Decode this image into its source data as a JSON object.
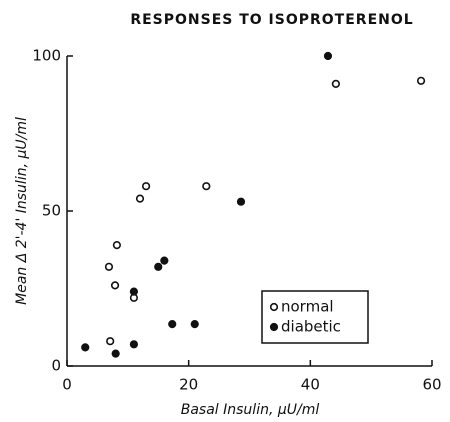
{
  "chart_data": {
    "type": "scatter",
    "title": "RESPONSES TO ISOPROTERENOL",
    "xlabel": "Basal Insulin, μU/ml",
    "ylabel": "Mean Δ 2'-4' Insulin, μU/ml",
    "xlim": [
      0,
      60
    ],
    "xticks": [
      0,
      20,
      40,
      60
    ],
    "ylim": [
      0,
      100
    ],
    "yticks": [
      0,
      50,
      100
    ],
    "legend": "lower right",
    "series": [
      {
        "name": "normal",
        "color": "#111111",
        "marker": "open",
        "x": [
          7.1,
          7.9,
          6.9,
          8.2,
          11,
          12,
          13,
          22.9,
          44.2,
          58.2
        ],
        "values": [
          8,
          26,
          32,
          39,
          22,
          54,
          58,
          58,
          91,
          92
        ]
      },
      {
        "name": "diabetic",
        "color": "#111111",
        "marker": "filled",
        "x": [
          3,
          8,
          11,
          11,
          15,
          16,
          17.3,
          21,
          28.6,
          42.9
        ],
        "values": [
          6,
          4,
          7,
          24,
          32,
          34,
          13.5,
          13.5,
          53,
          100
        ]
      }
    ]
  }
}
